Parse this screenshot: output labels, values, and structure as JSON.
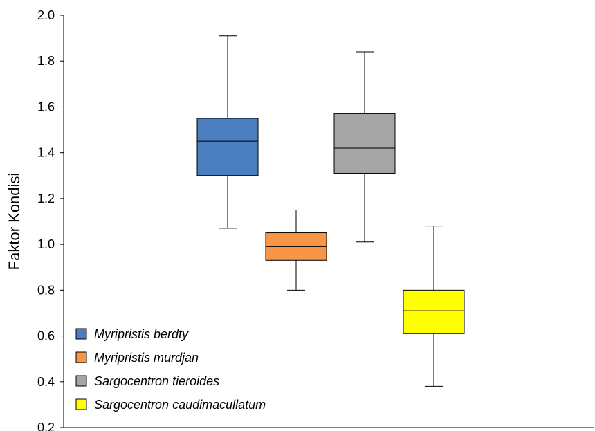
{
  "chart_data": {
    "type": "box",
    "ylabel": "Faktor Kondisi",
    "ylim": [
      0.2,
      2.0
    ],
    "yticks": [
      "0.2",
      "0.4",
      "0.6",
      "0.8",
      "1.0",
      "1.2",
      "1.4",
      "1.6",
      "1.8",
      "2.0"
    ],
    "grid": false,
    "legend_position": "bottom-left",
    "series": [
      {
        "name": "Myripristis berdty",
        "color": "#4a7ebf",
        "min": 1.07,
        "q1": 1.3,
        "median": 1.45,
        "q3": 1.55,
        "max": 1.91
      },
      {
        "name": "Myripristis murdjan",
        "color": "#f79646",
        "min": 0.8,
        "q1": 0.93,
        "median": 0.99,
        "q3": 1.05,
        "max": 1.15
      },
      {
        "name": "Sargocentron tieroides",
        "color": "#a5a5a5",
        "min": 1.01,
        "q1": 1.31,
        "median": 1.42,
        "q3": 1.57,
        "max": 1.84
      },
      {
        "name": "Sargocentron caudimacullatum",
        "color": "#ffff00",
        "min": 0.38,
        "q1": 0.61,
        "median": 0.71,
        "q3": 0.8,
        "max": 1.08
      }
    ]
  }
}
